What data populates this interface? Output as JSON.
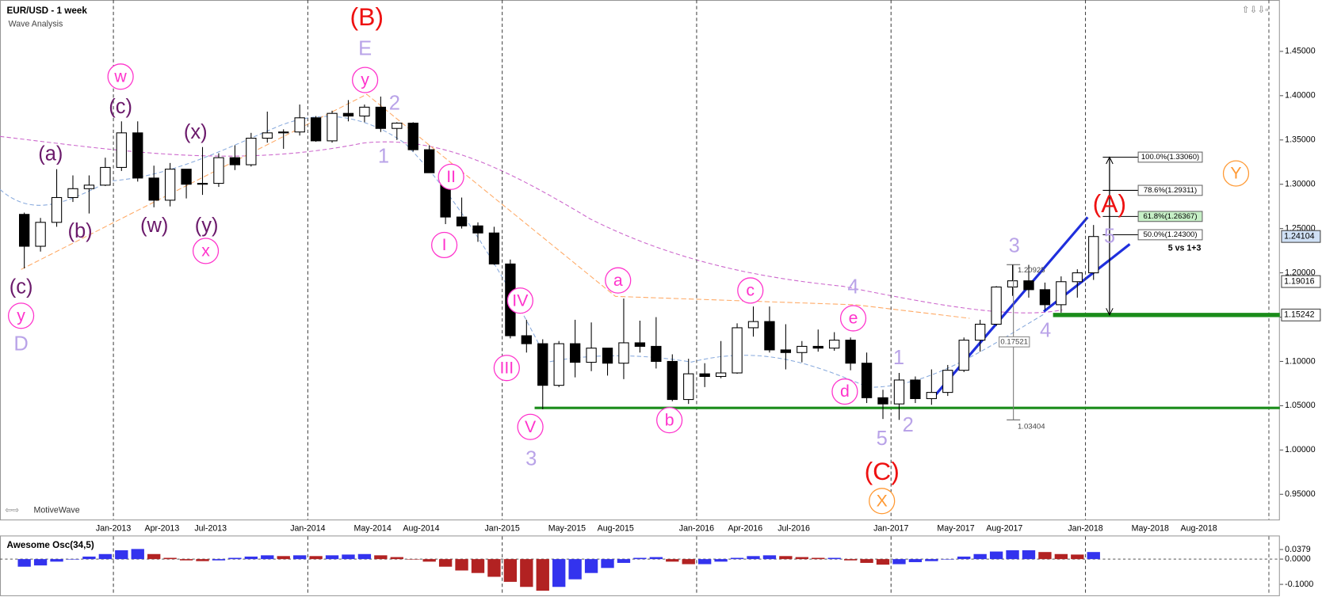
{
  "chart_data": [
    {
      "type": "candlestick",
      "title": "EUR/USD - 1 week",
      "subtitle": "Wave Analysis",
      "watermark": "MotiveWave",
      "x": [
        "Jul-2012",
        "Aug-2012",
        "Sep-2012",
        "Oct-2012",
        "Nov-2012",
        "Dec-2012",
        "Jan-2013",
        "Feb-2013",
        "Mar-2013",
        "Apr-2013",
        "May-2013",
        "Jun-2013",
        "Jul-2013",
        "Aug-2013",
        "Sep-2013",
        "Oct-2013",
        "Nov-2013",
        "Dec-2013",
        "Jan-2014",
        "Feb-2014",
        "Mar-2014",
        "Apr-2014",
        "May-2014",
        "Jun-2014",
        "Jul-2014",
        "Aug-2014",
        "Sep-2014",
        "Oct-2014",
        "Nov-2014",
        "Dec-2014",
        "Jan-2015",
        "Feb-2015",
        "Mar-2015",
        "Apr-2015",
        "May-2015",
        "Jun-2015",
        "Jul-2015",
        "Aug-2015",
        "Sep-2015",
        "Oct-2015",
        "Nov-2015",
        "Dec-2015",
        "Jan-2016",
        "Feb-2016",
        "Mar-2016",
        "Apr-2016",
        "May-2016",
        "Jun-2016",
        "Jul-2016",
        "Aug-2016",
        "Sep-2016",
        "Oct-2016",
        "Nov-2016",
        "Dec-2016",
        "Jan-2017",
        "Feb-2017",
        "Mar-2017",
        "Apr-2017",
        "May-2017",
        "Jun-2017",
        "Jul-2017",
        "Aug-2017",
        "Sep-2017",
        "Oct-2017",
        "Nov-2017",
        "Dec-2017",
        "Jan-2018"
      ],
      "open": [
        1.266,
        1.23,
        1.257,
        1.285,
        1.295,
        1.299,
        1.319,
        1.358,
        1.307,
        1.282,
        1.317,
        1.3,
        1.301,
        1.33,
        1.322,
        1.352,
        1.358,
        1.359,
        1.375,
        1.349,
        1.38,
        1.377,
        1.387,
        1.363,
        1.369,
        1.339,
        1.313,
        1.263,
        1.253,
        1.245,
        1.21,
        1.129,
        1.12,
        1.073,
        1.12,
        1.099,
        1.115,
        1.098,
        1.121,
        1.117,
        1.1,
        1.057,
        1.086,
        1.083,
        1.087,
        1.138,
        1.145,
        1.113,
        1.11,
        1.117,
        1.115,
        1.124,
        1.098,
        1.059,
        1.052,
        1.079,
        1.058,
        1.065,
        1.09,
        1.124,
        1.142,
        1.184,
        1.191,
        1.181,
        1.164,
        1.19,
        1.2
      ],
      "high": [
        1.268,
        1.262,
        1.317,
        1.31,
        1.31,
        1.33,
        1.371,
        1.371,
        1.321,
        1.324,
        1.317,
        1.342,
        1.335,
        1.344,
        1.358,
        1.382,
        1.362,
        1.39,
        1.377,
        1.383,
        1.395,
        1.39,
        1.399,
        1.37,
        1.37,
        1.344,
        1.32,
        1.285,
        1.257,
        1.252,
        1.215,
        1.147,
        1.125,
        1.123,
        1.147,
        1.144,
        1.112,
        1.171,
        1.146,
        1.15,
        1.108,
        1.103,
        1.098,
        1.123,
        1.143,
        1.162,
        1.162,
        1.142,
        1.123,
        1.136,
        1.133,
        1.127,
        1.11,
        1.068,
        1.087,
        1.083,
        1.091,
        1.096,
        1.127,
        1.147,
        1.185,
        1.209,
        1.209,
        1.189,
        1.196,
        1.204,
        1.254
      ],
      "low": [
        1.205,
        1.224,
        1.252,
        1.28,
        1.267,
        1.298,
        1.315,
        1.303,
        1.274,
        1.275,
        1.284,
        1.288,
        1.297,
        1.316,
        1.32,
        1.347,
        1.34,
        1.355,
        1.348,
        1.347,
        1.371,
        1.37,
        1.359,
        1.35,
        1.337,
        1.313,
        1.255,
        1.25,
        1.235,
        1.209,
        1.126,
        1.11,
        1.046,
        1.071,
        1.082,
        1.089,
        1.084,
        1.08,
        1.11,
        1.092,
        1.055,
        1.052,
        1.071,
        1.081,
        1.086,
        1.128,
        1.11,
        1.091,
        1.099,
        1.111,
        1.112,
        1.09,
        1.053,
        1.035,
        1.034,
        1.053,
        1.051,
        1.061,
        1.088,
        1.111,
        1.14,
        1.174,
        1.172,
        1.158,
        1.155,
        1.172,
        1.192
      ],
      "close": [
        1.23,
        1.257,
        1.285,
        1.295,
        1.299,
        1.319,
        1.358,
        1.307,
        1.282,
        1.317,
        1.3,
        1.301,
        1.33,
        1.322,
        1.352,
        1.358,
        1.359,
        1.375,
        1.349,
        1.38,
        1.377,
        1.387,
        1.363,
        1.369,
        1.339,
        1.313,
        1.263,
        1.253,
        1.245,
        1.21,
        1.129,
        1.12,
        1.073,
        1.12,
        1.099,
        1.115,
        1.098,
        1.121,
        1.117,
        1.1,
        1.057,
        1.086,
        1.083,
        1.087,
        1.138,
        1.145,
        1.113,
        1.11,
        1.117,
        1.115,
        1.124,
        1.098,
        1.059,
        1.052,
        1.079,
        1.058,
        1.065,
        1.09,
        1.124,
        1.142,
        1.184,
        1.191,
        1.181,
        1.164,
        1.19,
        1.2,
        1.241
      ],
      "up_color": "#ffffff",
      "down_color": "#000000",
      "xlim": [
        "Jun-2012",
        "Jan-2019"
      ],
      "xticks": [
        "Jan-2013",
        "Apr-2013",
        "Jul-2013",
        "Jan-2014",
        "May-2014",
        "Aug-2014",
        "Jan-2015",
        "May-2015",
        "Aug-2015",
        "Jan-2016",
        "Apr-2016",
        "Jul-2016",
        "Jan-2017",
        "May-2017",
        "Aug-2017",
        "Jan-2018",
        "May-2018",
        "Aug-2018"
      ],
      "ylim": [
        0.9215,
        1.508
      ],
      "yticks": [
        {
          "value": 0.95,
          "label": "0.95000"
        },
        {
          "value": 1.0,
          "label": "1.00000"
        },
        {
          "value": 1.05,
          "label": "1.05000"
        },
        {
          "value": 1.1,
          "label": "1.10000"
        },
        {
          "value": 1.15,
          "label": "1.15000"
        },
        {
          "value": 1.2,
          "label": "1.20000"
        },
        {
          "value": 1.25,
          "label": "1.25000"
        },
        {
          "value": 1.3,
          "label": "1.30000"
        },
        {
          "value": 1.35,
          "label": "1.35000"
        },
        {
          "value": 1.4,
          "label": "1.40000"
        },
        {
          "value": 1.45,
          "label": "1.45000"
        }
      ],
      "grid": false,
      "price_markers": [
        {
          "value": 1.24104,
          "label": "1.24104",
          "color": "#cfe0f5"
        },
        {
          "value": 1.19016,
          "label": "1.19016",
          "color": "#ffffff"
        },
        {
          "value": 1.15242,
          "label": "1.15242",
          "color": "#ffffff"
        }
      ],
      "support_lines": [
        {
          "value": 1.0475,
          "from": "Mar-2015",
          "color": "#1a8c1a"
        },
        {
          "value": 1.15242,
          "from": "Nov-2017",
          "color": "#1a8c1a"
        }
      ],
      "fib_levels": [
        {
          "value": 1.3306,
          "label": "100.0%(1.33060)",
          "color": "#ffffff"
        },
        {
          "value": 1.29311,
          "label": "78.6%(1.29311)",
          "color": "#ffffff"
        },
        {
          "value": 1.26367,
          "label": "61.8%(1.26367)",
          "color": "#c6efc6"
        },
        {
          "value": 1.243,
          "label": "50.0%(1.24300)",
          "color": "#ffffff"
        }
      ],
      "fib_note": "5 vs 1+3",
      "measure": {
        "high": {
          "value": 1.20925,
          "label": "1.20925"
        },
        "range": 0.17521,
        "low": {
          "value": 1.03404,
          "label": "1.03404"
        }
      },
      "annotations": [
        {
          "text": "(a)",
          "color": "#6b1a6b",
          "style": "plain"
        },
        {
          "text": "(b)",
          "color": "#6b1a6b",
          "style": "plain"
        },
        {
          "text": "(c)",
          "color": "#6b1a6b",
          "style": "plain"
        },
        {
          "text": "(x)",
          "color": "#6b1a6b",
          "style": "plain"
        },
        {
          "text": "(w)",
          "color": "#6b1a6b",
          "style": "plain"
        },
        {
          "text": "(y)",
          "color": "#6b1a6b",
          "style": "plain"
        },
        {
          "text": "(c)",
          "color": "#6b1a6b",
          "style": "plain"
        },
        {
          "text": "w",
          "color": "#ff33cc",
          "style": "circle"
        },
        {
          "text": "x",
          "color": "#ff33cc",
          "style": "circle"
        },
        {
          "text": "y",
          "color": "#ff33cc",
          "style": "circle"
        },
        {
          "text": "y",
          "color": "#ff33cc",
          "style": "circle"
        },
        {
          "text": "II",
          "color": "#ff33cc",
          "style": "circle"
        },
        {
          "text": "I",
          "color": "#ff33cc",
          "style": "circle"
        },
        {
          "text": "IV",
          "color": "#ff33cc",
          "style": "circle"
        },
        {
          "text": "III",
          "color": "#ff33cc",
          "style": "circle"
        },
        {
          "text": "V",
          "color": "#ff33cc",
          "style": "circle"
        },
        {
          "text": "a",
          "color": "#ff33cc",
          "style": "circle"
        },
        {
          "text": "b",
          "color": "#ff33cc",
          "style": "circle"
        },
        {
          "text": "c",
          "color": "#ff33cc",
          "style": "circle"
        },
        {
          "text": "d",
          "color": "#ff33cc",
          "style": "circle"
        },
        {
          "text": "e",
          "color": "#ff33cc",
          "style": "circle"
        },
        {
          "text": "D",
          "color": "#b9a3e8",
          "style": "plain"
        },
        {
          "text": "E",
          "color": "#b9a3e8",
          "style": "plain"
        },
        {
          "text": "2",
          "color": "#b9a3e8",
          "style": "plain"
        },
        {
          "text": "1",
          "color": "#b9a3e8",
          "style": "plain"
        },
        {
          "text": "3",
          "color": "#b9a3e8",
          "style": "plain"
        },
        {
          "text": "4",
          "color": "#b9a3e8",
          "style": "plain"
        },
        {
          "text": "1",
          "color": "#b9a3e8",
          "style": "plain"
        },
        {
          "text": "2",
          "color": "#b9a3e8",
          "style": "plain"
        },
        {
          "text": "5",
          "color": "#b9a3e8",
          "style": "plain"
        },
        {
          "text": "3",
          "color": "#b9a3e8",
          "style": "plain"
        },
        {
          "text": "4",
          "color": "#b9a3e8",
          "style": "plain"
        },
        {
          "text": "5",
          "color": "#b9a3e8",
          "style": "plain"
        },
        {
          "text": "(B)",
          "color": "#ee1111",
          "style": "large"
        },
        {
          "text": "(C)",
          "color": "#ee1111",
          "style": "large"
        },
        {
          "text": "(A)",
          "color": "#ee1111",
          "style": "large"
        },
        {
          "text": "X",
          "color": "#ff9933",
          "style": "circle"
        },
        {
          "text": "Y",
          "color": "#ff9933",
          "style": "circle"
        }
      ]
    },
    {
      "type": "bar",
      "title": "Awesome Osc(34,5)",
      "values": [
        -0.03,
        -0.025,
        -0.01,
        0.0,
        0.01,
        0.02,
        0.035,
        0.04,
        0.02,
        0.005,
        -0.005,
        -0.008,
        -0.005,
        0.005,
        0.01,
        0.015,
        0.012,
        0.015,
        0.012,
        0.015,
        0.018,
        0.02,
        0.015,
        0.008,
        0.0,
        -0.01,
        -0.03,
        -0.045,
        -0.055,
        -0.07,
        -0.09,
        -0.11,
        -0.125,
        -0.11,
        -0.08,
        -0.055,
        -0.035,
        -0.015,
        0.005,
        0.008,
        -0.01,
        -0.02,
        -0.02,
        -0.01,
        0.005,
        0.012,
        0.015,
        0.012,
        0.008,
        0.005,
        0.005,
        -0.005,
        -0.015,
        -0.022,
        -0.02,
        -0.012,
        -0.008,
        0.0,
        0.01,
        0.02,
        0.03,
        0.035,
        0.035,
        0.028,
        0.02,
        0.018,
        0.028
      ],
      "up_color": "#3333ee",
      "down_color": "#b22222",
      "ylim": [
        -0.1433,
        0.0833
      ],
      "yticks": [
        {
          "value": 0.0379,
          "label": "0.0379"
        },
        {
          "value": 0,
          "label": "0.0000"
        },
        {
          "value": -0.1,
          "label": "-0.1000"
        }
      ]
    }
  ]
}
